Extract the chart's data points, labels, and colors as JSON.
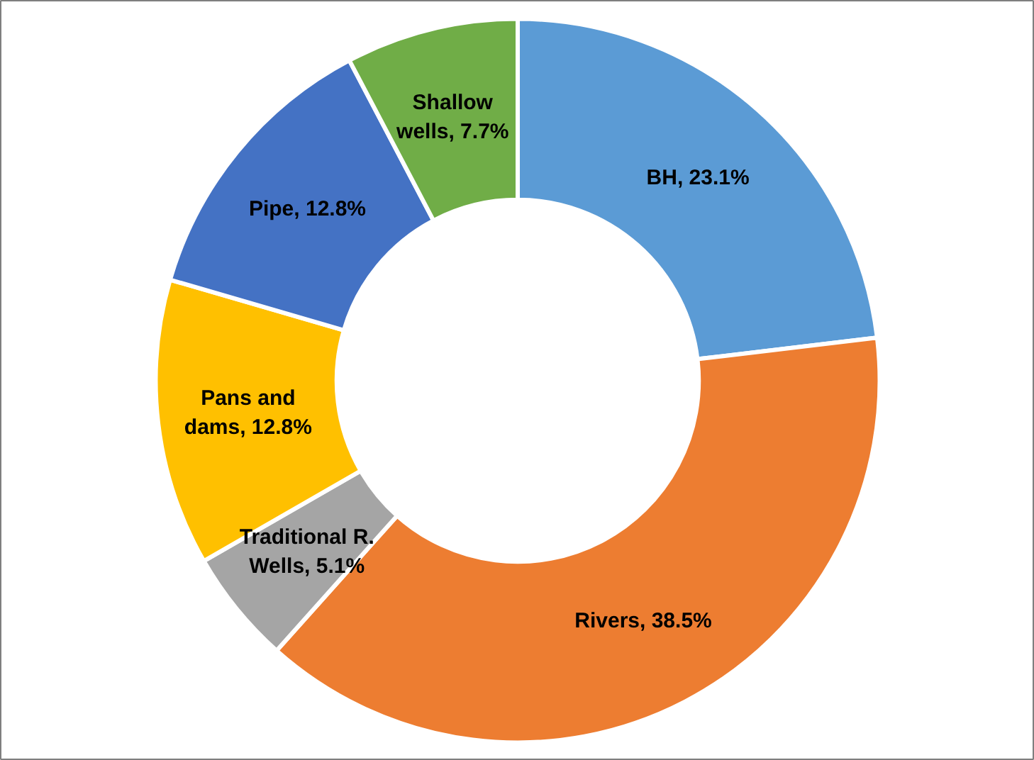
{
  "chart_data": {
    "type": "donut",
    "categories": [
      "BH",
      "Rivers",
      "Traditional R. Wells",
      "Pans and dams",
      "Pipe",
      "Shallow wells"
    ],
    "values": [
      23.1,
      38.5,
      5.1,
      12.8,
      12.8,
      7.7
    ],
    "colors": [
      "#5b9bd5",
      "#ed7d31",
      "#a5a5a5",
      "#ffc000",
      "#4472c4",
      "#70ad47"
    ],
    "value_labels": [
      "23.1%",
      "38.5%",
      "5.1%",
      "12.8%",
      "12.8%",
      "7.7%"
    ],
    "legend": false
  }
}
